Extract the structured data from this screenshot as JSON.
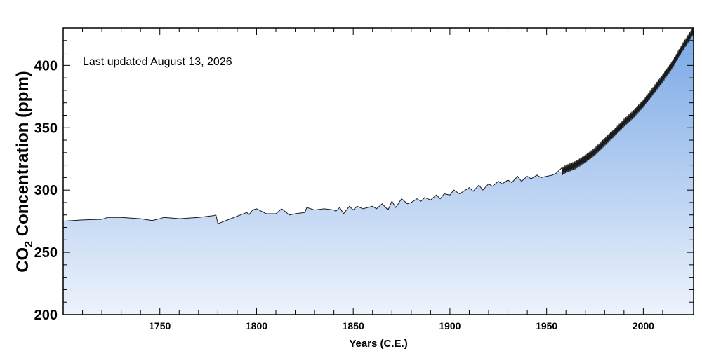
{
  "chart_data": {
    "type": "area",
    "annotation": "Last updated August 13, 2026",
    "xlabel": "Years (C.E.)",
    "ylabel_prefix": "CO",
    "ylabel_subscript": "2",
    "ylabel_suffix": " Concentration (ppm)",
    "xlim": [
      1700,
      2026
    ],
    "ylim": [
      200,
      430
    ],
    "x_ticks": [
      1750,
      1800,
      1850,
      1900,
      1950,
      2000
    ],
    "y_ticks": [
      200,
      250,
      300,
      350,
      400
    ],
    "grid": false,
    "fill_colors": {
      "top": "#7aa8e6",
      "bottom": "#eef3fb"
    },
    "line_color": "#1a1a1a",
    "series": [
      {
        "x": [
          1700,
          1710,
          1720,
          1723,
          1730,
          1740,
          1746,
          1750,
          1752,
          1760,
          1770,
          1778,
          1779,
          1780,
          1785,
          1790,
          1795,
          1796,
          1798,
          1800,
          1805,
          1810,
          1813,
          1817,
          1820,
          1825,
          1826,
          1830,
          1835,
          1840,
          1841,
          1843,
          1845,
          1848,
          1850,
          1852,
          1855,
          1860,
          1862,
          1865,
          1868,
          1870,
          1872,
          1875,
          1878,
          1880,
          1883,
          1885,
          1887,
          1890,
          1893,
          1895,
          1897,
          1900,
          1902,
          1905,
          1907,
          1910,
          1912,
          1915,
          1917,
          1920,
          1922,
          1925,
          1927,
          1930,
          1932,
          1935,
          1937,
          1940,
          1942,
          1945,
          1947,
          1950,
          1953,
          1955,
          1958,
          1960,
          1965,
          1970,
          1975,
          1980,
          1985,
          1990,
          1995,
          2000,
          2005,
          2010,
          2015,
          2020,
          2026
        ],
        "y": [
          275,
          276,
          276.5,
          278,
          278,
          277,
          275.5,
          277,
          278,
          277,
          278,
          279.5,
          280,
          273,
          276,
          279,
          282,
          280,
          284,
          285,
          281,
          281,
          285,
          280,
          281,
          282,
          286,
          284,
          285,
          284,
          283,
          286,
          281,
          287,
          284,
          287,
          285,
          287,
          285,
          289,
          284,
          291,
          286,
          293,
          289,
          290,
          293,
          291,
          294,
          292,
          296,
          293,
          297,
          296,
          300,
          297,
          299,
          302,
          299,
          304,
          300,
          305,
          303,
          307,
          305,
          308,
          306,
          311,
          307,
          311,
          309,
          312,
          310,
          311,
          312,
          313.5,
          315,
          317,
          320,
          325,
          331,
          338.5,
          346,
          354,
          361,
          369.5,
          379.5,
          389.5,
          400.5,
          414,
          428
        ]
      }
    ]
  }
}
